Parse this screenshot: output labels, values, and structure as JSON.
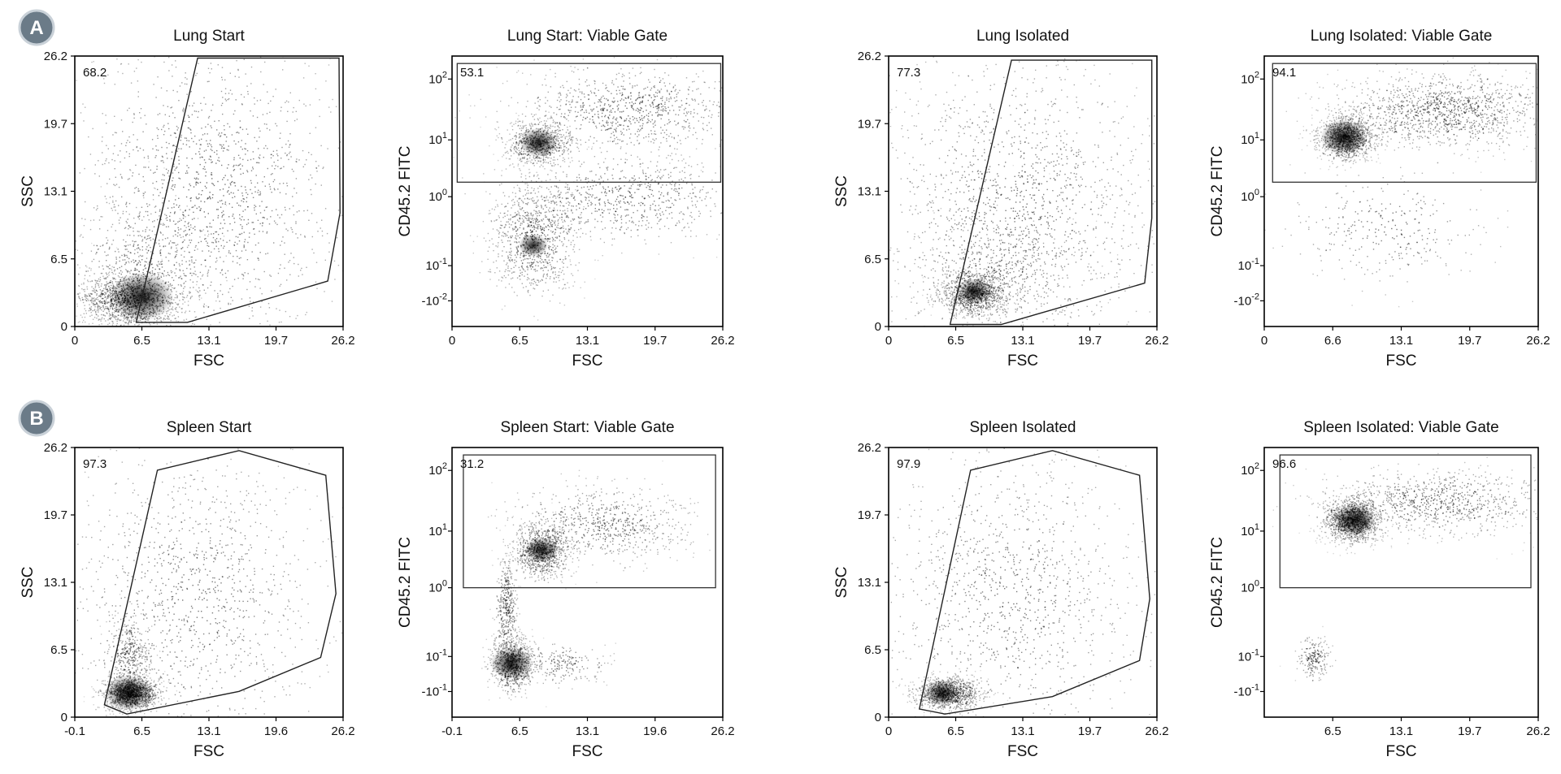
{
  "panels": [
    {
      "letter": "A"
    },
    {
      "letter": "B"
    }
  ],
  "chart_data": [
    {
      "type": "scatter",
      "title": "Lung Start",
      "xlabel": "FSC",
      "ylabel": "SSC",
      "xticks": [
        "0",
        "6.5",
        "13.1",
        "19.7",
        "26.2"
      ],
      "yticks": [
        "0",
        "6.5",
        "13.1",
        "19.7",
        "26.2"
      ],
      "xlim": [
        0,
        26.2
      ],
      "ylim": [
        0,
        26.2
      ],
      "yscale": "linear",
      "gate": {
        "type": "polygon",
        "percent": "68.2",
        "vertices": [
          [
            6.0,
            0.4
          ],
          [
            12.0,
            26.0
          ],
          [
            25.8,
            26.0
          ],
          [
            25.9,
            11.0
          ],
          [
            24.7,
            4.4
          ],
          [
            11.0,
            0.4
          ]
        ]
      },
      "grid": false,
      "legend": "none"
    },
    {
      "type": "scatter",
      "title": "Lung Start: Viable Gate",
      "xlabel": "FSC",
      "ylabel": "CD45.2 FITC",
      "xticks": [
        "0",
        "6.5",
        "13.1",
        "19.7",
        "26.2"
      ],
      "yticks": [
        "10^2",
        "10^1",
        "10^0",
        "10^-1",
        "-10^-2"
      ],
      "xlim": [
        0,
        26.2
      ],
      "yscale": "log",
      "gate": {
        "type": "rectangle",
        "percent": "53.1",
        "x": [
          0.5,
          26.0
        ],
        "y": [
          1.8,
          180
        ]
      },
      "grid": false,
      "legend": "none"
    },
    {
      "type": "scatter",
      "title": "Lung Isolated",
      "xlabel": "FSC",
      "ylabel": "SSC",
      "xticks": [
        "0",
        "6.5",
        "13.1",
        "19.7",
        "26.2"
      ],
      "yticks": [
        "0",
        "6.5",
        "13.1",
        "19.7",
        "26.2"
      ],
      "xlim": [
        0,
        26.2
      ],
      "ylim": [
        0,
        26.2
      ],
      "yscale": "linear",
      "gate": {
        "type": "polygon",
        "percent": "77.3",
        "vertices": [
          [
            6.0,
            0.2
          ],
          [
            12.0,
            25.8
          ],
          [
            25.7,
            25.8
          ],
          [
            25.7,
            10.5
          ],
          [
            25.0,
            4.2
          ],
          [
            11.0,
            0.2
          ]
        ]
      },
      "grid": false,
      "legend": "none"
    },
    {
      "type": "scatter",
      "title": "Lung Isolated: Viable Gate",
      "xlabel": "FSC",
      "ylabel": "CD45.2 FITC",
      "xticks": [
        "0",
        "6.6",
        "13.1",
        "19.7",
        "26.2"
      ],
      "yticks": [
        "10^2",
        "10^1",
        "10^0",
        "10^-1",
        "-10^-2"
      ],
      "xlim": [
        0,
        26.2
      ],
      "yscale": "log",
      "gate": {
        "type": "rectangle",
        "percent": "94.1",
        "x": [
          0.8,
          26.0
        ],
        "y": [
          1.8,
          180
        ]
      },
      "grid": false,
      "legend": "none"
    },
    {
      "type": "scatter",
      "title": "Spleen Start",
      "xlabel": "FSC",
      "ylabel": "SSC",
      "xticks": [
        "-0.1",
        "6.5",
        "13.1",
        "19.6",
        "26.2"
      ],
      "yticks": [
        "0",
        "6.5",
        "13.1",
        "19.7",
        "26.2"
      ],
      "xlim": [
        -0.1,
        26.2
      ],
      "ylim": [
        0,
        26.2
      ],
      "yscale": "linear",
      "gate": {
        "type": "polygon",
        "percent": "97.3",
        "vertices": [
          [
            2.8,
            1.2
          ],
          [
            8.0,
            24.0
          ],
          [
            16.0,
            25.9
          ],
          [
            24.5,
            23.5
          ],
          [
            25.5,
            12.0
          ],
          [
            24.0,
            5.8
          ],
          [
            16.0,
            2.5
          ],
          [
            5.0,
            0.3
          ]
        ]
      },
      "grid": false,
      "legend": "none"
    },
    {
      "type": "scatter",
      "title": "Spleen Start: Viable Gate",
      "xlabel": "FSC",
      "ylabel": "CD45.2 FITC",
      "xticks": [
        "-0.1",
        "6.5",
        "13.1",
        "19.6",
        "26.2"
      ],
      "yticks": [
        "10^2",
        "10^1",
        "10^0",
        "10^-1",
        "-10^-1"
      ],
      "xlim": [
        -0.1,
        26.2
      ],
      "yscale": "log",
      "gate": {
        "type": "rectangle",
        "percent": "31.2",
        "x": [
          1.0,
          25.5
        ],
        "y": [
          1.0,
          180
        ]
      },
      "grid": false,
      "legend": "none"
    },
    {
      "type": "scatter",
      "title": "Spleen Isolated",
      "xlabel": "FSC",
      "ylabel": "SSC",
      "xticks": [
        "0",
        "6.5",
        "13.1",
        "19.7",
        "26.2"
      ],
      "yticks": [
        "0",
        "6.5",
        "13.1",
        "19.7",
        "26.2"
      ],
      "xlim": [
        0,
        26.2
      ],
      "ylim": [
        0,
        26.2
      ],
      "yscale": "linear",
      "gate": {
        "type": "polygon",
        "percent": "97.9",
        "vertices": [
          [
            3.0,
            0.8
          ],
          [
            8.0,
            24.0
          ],
          [
            16.0,
            25.9
          ],
          [
            24.5,
            23.5
          ],
          [
            25.5,
            11.5
          ],
          [
            24.5,
            5.5
          ],
          [
            16.0,
            2.0
          ],
          [
            5.5,
            0.3
          ]
        ]
      },
      "grid": false,
      "legend": "none"
    },
    {
      "type": "scatter",
      "title": "Spleen Isolated: Viable Gate",
      "xlabel": "FSC",
      "ylabel": "CD45.2 FITC",
      "xticks": [
        "6.5",
        "13.1",
        "19.7",
        "26.2"
      ],
      "yticks": [
        "10^2",
        "10^1",
        "10^0",
        "10^-1",
        "-10^-1"
      ],
      "xlim": [
        0,
        26.2
      ],
      "yscale": "log",
      "gate": {
        "type": "rectangle",
        "percent": "96.6",
        "x": [
          1.5,
          25.5
        ],
        "y": [
          1.0,
          180
        ]
      },
      "grid": false,
      "legend": "none"
    }
  ]
}
